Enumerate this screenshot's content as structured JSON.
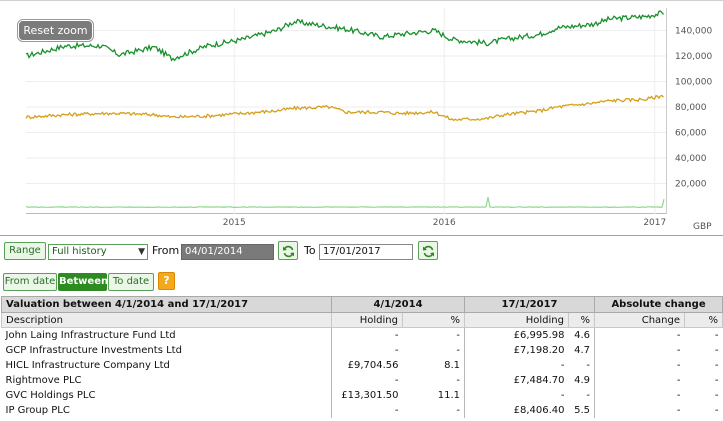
{
  "chart": {
    "reset_zoom_label": "Reset zoom",
    "currency_label": "GBP",
    "y_ticks": [
      "140,000",
      "120,000",
      "100,000",
      "80,000",
      "60,000",
      "40,000",
      "20,000"
    ],
    "x_ticks": [
      "2015",
      "2016",
      "2017"
    ]
  },
  "chart_data": {
    "type": "line",
    "x_range": [
      "2014-01-04",
      "2017-01-17"
    ],
    "ylim": [
      0,
      160000
    ],
    "grid": true,
    "series": [
      {
        "color": "#1a8f2e",
        "x": [
          "2014-01",
          "2014-03",
          "2014-05",
          "2014-06",
          "2014-08",
          "2014-09",
          "2014-11",
          "2015-01",
          "2015-03",
          "2015-04",
          "2015-06",
          "2015-07",
          "2015-09",
          "2015-10",
          "2015-12",
          "2016-01",
          "2016-03",
          "2016-04",
          "2016-06",
          "2016-07",
          "2016-09",
          "2016-10",
          "2016-12",
          "2017-01"
        ],
        "values": [
          120000,
          128000,
          128000,
          121000,
          127000,
          118000,
          128000,
          133000,
          140000,
          147000,
          143000,
          141000,
          135000,
          137000,
          140000,
          133000,
          130000,
          133000,
          137000,
          142000,
          145000,
          149000,
          151000,
          154000
        ]
      },
      {
        "color": "#d4a017",
        "x": [
          "2014-01",
          "2014-03",
          "2014-05",
          "2014-06",
          "2014-08",
          "2014-09",
          "2014-11",
          "2015-01",
          "2015-03",
          "2015-04",
          "2015-06",
          "2015-07",
          "2015-09",
          "2015-10",
          "2015-12",
          "2016-01",
          "2016-03",
          "2016-04",
          "2016-06",
          "2016-07",
          "2016-09",
          "2016-10",
          "2016-12",
          "2017-01"
        ],
        "values": [
          72000,
          74000,
          75000,
          75000,
          74000,
          72000,
          73000,
          75000,
          77000,
          79000,
          80000,
          76000,
          76000,
          75000,
          76000,
          70000,
          71000,
          74000,
          77000,
          80000,
          83000,
          85000,
          86000,
          89000
        ]
      },
      {
        "color": "#8cd98c",
        "x": [
          "2014-01",
          "2014-02",
          "2014-04",
          "2014-05",
          "2014-07",
          "2014-09",
          "2014-11",
          "2015-01",
          "2015-03",
          "2015-05",
          "2015-07",
          "2015-09",
          "2015-11",
          "2016-01",
          "2016-02",
          "2016-03",
          "2016-05",
          "2016-07",
          "2016-09",
          "2016-10",
          "2016-11",
          "2016-12",
          "2017-01"
        ],
        "values": [
          1500,
          8000,
          1500,
          9000,
          1500,
          1500,
          1500,
          1500,
          1500,
          1500,
          1500,
          1500,
          1500,
          1500,
          7000,
          9000,
          7500,
          1500,
          11000,
          17000,
          10000,
          8000,
          4000
        ]
      }
    ]
  },
  "controls": {
    "range_label": "Range",
    "range_value": "Full history",
    "from_label": "From",
    "from_value": "04/01/2014",
    "to_label": "To",
    "to_value": "17/01/2017",
    "mode_from_date": "From date",
    "mode_between": "Between",
    "mode_to_date": "To date",
    "help_label": "?"
  },
  "table": {
    "title": "Valuation between 4/1/2014 and 17/1/2017",
    "date1": "4/1/2014",
    "date2": "17/1/2017",
    "abs_change": "Absolute change",
    "col_description": "Description",
    "col_holding1": "Holding",
    "col_pct1": "%",
    "col_holding2": "Holding",
    "col_pct2": "%",
    "col_change": "Change",
    "col_pct3": "%",
    "rows": [
      {
        "name": "John Laing Infrastructure Fund Ltd",
        "h1": "-",
        "p1": "-",
        "h2": "£6,995.98",
        "p2": "4.6",
        "c": "-",
        "p3": "-"
      },
      {
        "name": "GCP Infrastructure Investments Ltd",
        "h1": "-",
        "p1": "-",
        "h2": "£7,198.20",
        "p2": "4.7",
        "c": "-",
        "p3": "-"
      },
      {
        "name": "HICL Infrastructure Company Ltd",
        "h1": "£9,704.56",
        "p1": "8.1",
        "h2": "-",
        "p2": "-",
        "c": "-",
        "p3": "-"
      },
      {
        "name": "Rightmove PLC",
        "h1": "-",
        "p1": "-",
        "h2": "£7,484.70",
        "p2": "4.9",
        "c": "-",
        "p3": "-"
      },
      {
        "name": "GVC Holdings PLC",
        "h1": "£13,301.50",
        "p1": "11.1",
        "h2": "-",
        "p2": "-",
        "c": "-",
        "p3": "-"
      },
      {
        "name": "IP Group PLC",
        "h1": "-",
        "p1": "-",
        "h2": "£8,406.40",
        "p2": "5.5",
        "c": "-",
        "p3": "-"
      }
    ]
  }
}
